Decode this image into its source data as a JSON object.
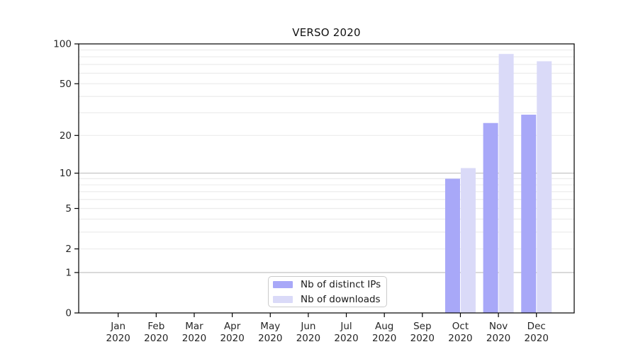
{
  "chart_data": {
    "type": "bar",
    "title": "VERSO 2020",
    "x_tick_months": [
      "Jan",
      "Feb",
      "Mar",
      "Apr",
      "May",
      "Jun",
      "Jul",
      "Aug",
      "Sep",
      "Oct",
      "Nov",
      "Dec"
    ],
    "x_tick_year": "2020",
    "series": [
      {
        "name": "Nb of distinct IPs",
        "color": "#a8a8f8",
        "values": [
          0,
          0,
          0,
          0,
          0,
          0,
          0,
          0,
          0,
          9,
          25,
          29
        ]
      },
      {
        "name": "Nb of downloads",
        "color": "#dadaf8",
        "values": [
          0,
          0,
          0,
          0,
          0,
          0,
          0,
          0,
          0,
          11,
          84,
          74
        ]
      }
    ],
    "yticks": [
      0,
      1,
      2,
      5,
      10,
      20,
      50,
      100
    ],
    "ylim": [
      0,
      100
    ],
    "yscale": "symlog",
    "grid": true,
    "legend_position": "inside-bottom-center"
  },
  "colors": {
    "grid_minor": "#ececec",
    "grid_major": "#c9c9c9",
    "axis": "#000000",
    "tick_text": "#262626"
  }
}
